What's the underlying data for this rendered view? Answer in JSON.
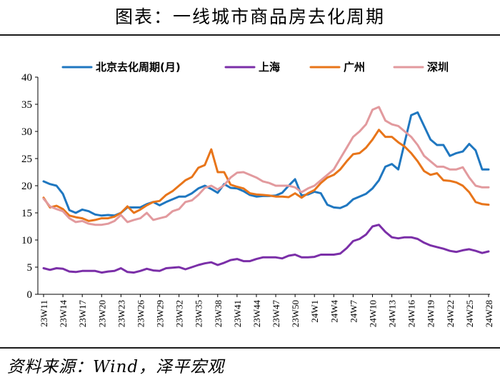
{
  "title": "图表：一线城市商品房去化周期",
  "source": "资料来源：Wind，泽平宏观",
  "chart_data": {
    "type": "line",
    "title": "图表：一线城市商品房去化周期",
    "xlabel": "",
    "ylabel": "",
    "ylim": [
      0,
      40
    ],
    "yticks": [
      0,
      5,
      10,
      15,
      20,
      25,
      30,
      35,
      40
    ],
    "xtick_labels": [
      "23W11",
      "23W14",
      "23W17",
      "23W20",
      "23W23",
      "23W26",
      "23W29",
      "23W32",
      "23W35",
      "23W38",
      "23W41",
      "23W44",
      "23W47",
      "23W50",
      "24W1",
      "24W4",
      "24W7",
      "24W10",
      "24W13",
      "24W16",
      "24W19",
      "24W22",
      "24W25",
      "24W28"
    ],
    "n_points": 70,
    "legend_position": "top",
    "series": [
      {
        "name": "北京去化周期(月)",
        "color": "#1f77c0",
        "values": [
          20.8,
          20.3,
          20.0,
          18.5,
          15.5,
          15.0,
          15.6,
          15.3,
          14.7,
          14.5,
          14.6,
          14.5,
          15.0,
          16.0,
          16.0,
          16.0,
          16.6,
          17.0,
          16.4,
          17.0,
          17.5,
          18.0,
          18.0,
          18.6,
          19.5,
          20.0,
          19.4,
          18.7,
          20.3,
          19.6,
          19.5,
          19.0,
          18.3,
          18.0,
          18.1,
          18.1,
          18.2,
          18.7,
          20.0,
          21.2,
          18.2,
          18.4,
          18.9,
          18.6,
          16.5,
          16.0,
          15.9,
          16.4,
          17.5,
          18.0,
          18.5,
          19.5,
          21.0,
          23.5,
          24.0,
          23.0,
          28.0,
          33.0,
          33.5,
          31.0,
          28.5,
          27.5,
          27.5,
          25.5,
          26.0,
          26.3,
          27.7,
          26.5,
          23.0,
          23.0
        ]
      },
      {
        "name": "上海",
        "color": "#7b2fa8",
        "values": [
          4.8,
          4.5,
          4.8,
          4.7,
          4.2,
          4.1,
          4.3,
          4.3,
          4.3,
          4.0,
          4.2,
          4.3,
          4.8,
          4.1,
          4.0,
          4.3,
          4.7,
          4.4,
          4.3,
          4.8,
          4.9,
          5.0,
          4.6,
          5.0,
          5.4,
          5.7,
          5.9,
          5.4,
          5.8,
          6.3,
          6.5,
          6.1,
          6.1,
          6.5,
          6.8,
          6.8,
          6.8,
          6.6,
          7.1,
          7.3,
          6.8,
          6.8,
          6.9,
          7.3,
          7.3,
          7.3,
          7.5,
          8.5,
          9.8,
          10.2,
          11.0,
          12.5,
          12.8,
          11.5,
          10.5,
          10.3,
          10.5,
          10.5,
          10.2,
          9.5,
          9.0,
          8.7,
          8.4,
          8.0,
          7.8,
          8.1,
          8.3,
          8.0,
          7.6,
          7.9
        ]
      },
      {
        "name": "广州",
        "color": "#e8751a",
        "values": [
          17.8,
          16.0,
          16.3,
          15.7,
          14.5,
          14.2,
          14.0,
          13.5,
          13.7,
          14.0,
          14.0,
          14.3,
          15.0,
          16.2,
          15.0,
          15.6,
          16.4,
          17.0,
          17.2,
          18.3,
          19.0,
          20.0,
          21.0,
          21.6,
          23.3,
          23.8,
          26.7,
          22.5,
          22.5,
          20.2,
          19.8,
          19.5,
          18.6,
          18.4,
          18.3,
          18.2,
          18.0,
          18.0,
          17.9,
          18.6,
          17.8,
          18.6,
          19.2,
          20.5,
          21.5,
          22.0,
          23.0,
          24.5,
          25.8,
          26.0,
          27.0,
          28.5,
          30.3,
          29.0,
          29.0,
          28.0,
          27.2,
          26.0,
          24.5,
          22.7,
          22.0,
          22.3,
          21.0,
          20.9,
          20.6,
          20.0,
          18.8,
          17.0,
          16.6,
          16.5
        ]
      },
      {
        "name": "深圳",
        "color": "#e29a9e",
        "values": [
          17.6,
          16.2,
          15.7,
          15.3,
          14.0,
          13.3,
          13.5,
          13.0,
          12.8,
          12.8,
          13.0,
          13.5,
          14.6,
          13.3,
          13.7,
          14.0,
          15.0,
          13.7,
          14.0,
          14.3,
          15.3,
          15.7,
          17.0,
          17.3,
          18.3,
          19.6,
          20.0,
          19.3,
          20.1,
          21.5,
          22.4,
          22.5,
          22.0,
          21.5,
          20.8,
          20.5,
          20.0,
          20.0,
          20.0,
          19.7,
          18.8,
          19.5,
          20.0,
          21.0,
          22.0,
          23.0,
          25.0,
          27.0,
          29.0,
          30.0,
          31.3,
          34.0,
          34.5,
          32.0,
          31.3,
          31.0,
          30.0,
          29.0,
          27.5,
          25.5,
          24.5,
          23.5,
          23.5,
          23.0,
          23.0,
          23.4,
          21.5,
          20.0,
          19.7,
          19.7
        ]
      }
    ]
  }
}
